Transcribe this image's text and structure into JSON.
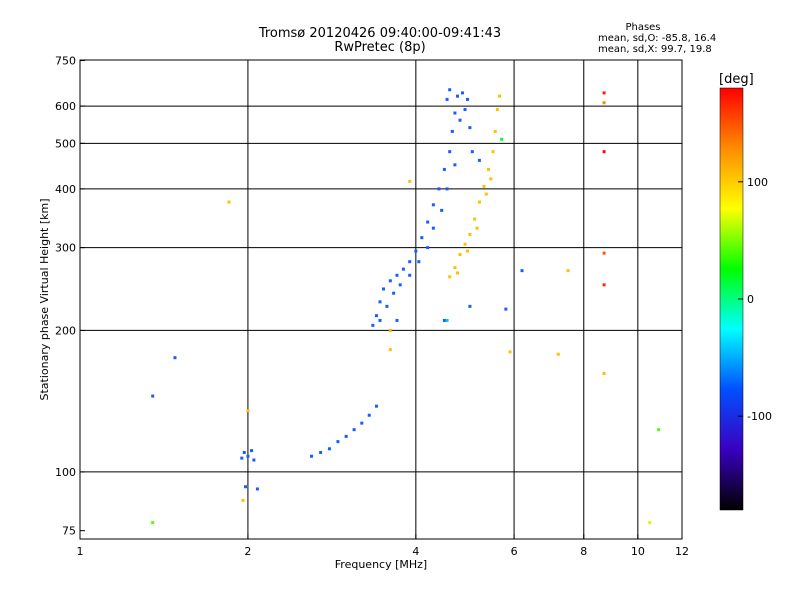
{
  "chart_data": {
    "type": "scatter",
    "title": "Tromsø 20120426 09:40:00-09:41:43",
    "subtitle": "RwPretec (8p)",
    "xlabel": "Frequency [MHz]",
    "ylabel": "Stationary phase Virtual Height [km]",
    "x_scale": "log",
    "y_scale": "log",
    "xlim": [
      1,
      12
    ],
    "ylim": [
      72,
      752
    ],
    "x_ticks": [
      1,
      2,
      4,
      6,
      8,
      10,
      12
    ],
    "y_ticks": [
      75,
      100,
      200,
      300,
      400,
      500,
      600,
      750
    ],
    "x_gridlines": [
      2,
      4,
      6,
      8,
      10
    ],
    "y_gridlines": [
      100,
      200,
      300,
      400,
      500,
      600
    ],
    "grid": true,
    "phase_stats": {
      "header": "Phases",
      "line_o": "mean, sd,O: -85.8, 16.4",
      "line_x": "mean, sd,X:  99.7, 19.8"
    },
    "colorbar": {
      "label": "[deg]",
      "range": [
        -180,
        180
      ],
      "ticks": [
        100,
        0,
        -100
      ],
      "colors": [
        "#ff0000",
        "#ff8c00",
        "#ffff00",
        "#00ff00",
        "#00ffff",
        "#0050ff",
        "#3a00c0",
        "#000000"
      ]
    },
    "o_trace": {
      "phase_deg": -85,
      "color": "#1a5cff",
      "points": [
        [
          1.35,
          145
        ],
        [
          1.48,
          175
        ],
        [
          1.95,
          107
        ],
        [
          1.97,
          110
        ],
        [
          2.0,
          108
        ],
        [
          2.03,
          111
        ],
        [
          2.05,
          106
        ],
        [
          1.98,
          93
        ],
        [
          2.08,
          92
        ],
        [
          2.6,
          108
        ],
        [
          2.7,
          110
        ],
        [
          2.8,
          112
        ],
        [
          2.9,
          116
        ],
        [
          3.0,
          119
        ],
        [
          3.1,
          123
        ],
        [
          3.2,
          127
        ],
        [
          3.3,
          132
        ],
        [
          3.4,
          138
        ],
        [
          3.35,
          205
        ],
        [
          3.4,
          215
        ],
        [
          3.45,
          230
        ],
        [
          3.5,
          245
        ],
        [
          3.6,
          255
        ],
        [
          3.7,
          262
        ],
        [
          3.8,
          270
        ],
        [
          3.9,
          280
        ],
        [
          4.0,
          295
        ],
        [
          4.1,
          315
        ],
        [
          4.2,
          340
        ],
        [
          4.3,
          370
        ],
        [
          4.4,
          400
        ],
        [
          4.5,
          440
        ],
        [
          4.6,
          480
        ],
        [
          4.65,
          530
        ],
        [
          4.7,
          580
        ],
        [
          4.75,
          630
        ],
        [
          4.85,
          640
        ],
        [
          4.9,
          590
        ],
        [
          5.0,
          540
        ],
        [
          5.05,
          480
        ],
        [
          4.8,
          560
        ],
        [
          4.55,
          620
        ],
        [
          4.6,
          650
        ],
        [
          3.45,
          210
        ],
        [
          3.55,
          225
        ],
        [
          3.65,
          240
        ],
        [
          3.75,
          250
        ],
        [
          3.9,
          262
        ],
        [
          4.05,
          280
        ],
        [
          4.2,
          300
        ],
        [
          4.3,
          330
        ],
        [
          4.45,
          360
        ],
        [
          4.55,
          400
        ],
        [
          4.7,
          450
        ],
        [
          4.95,
          620
        ],
        [
          5.2,
          460
        ],
        [
          6.2,
          268
        ],
        [
          5.8,
          222
        ],
        [
          5.0,
          225
        ],
        [
          4.5,
          210
        ],
        [
          3.7,
          210
        ]
      ]
    },
    "x_trace": {
      "phase_deg": 100,
      "color": "#ffc000",
      "points": [
        [
          4.6,
          260
        ],
        [
          4.7,
          272
        ],
        [
          4.8,
          290
        ],
        [
          4.9,
          305
        ],
        [
          5.0,
          320
        ],
        [
          5.1,
          345
        ],
        [
          5.2,
          375
        ],
        [
          5.3,
          405
        ],
        [
          5.4,
          440
        ],
        [
          5.5,
          480
        ],
        [
          5.55,
          530
        ],
        [
          5.6,
          590
        ],
        [
          5.65,
          630
        ],
        [
          4.75,
          265
        ],
        [
          4.95,
          295
        ],
        [
          5.15,
          330
        ],
        [
          5.35,
          390
        ],
        [
          5.45,
          420
        ],
        [
          3.9,
          415
        ],
        [
          3.6,
          182
        ],
        [
          1.85,
          375
        ],
        [
          2.0,
          135
        ],
        [
          1.96,
          87
        ],
        [
          5.9,
          180
        ],
        [
          7.2,
          178
        ],
        [
          7.5,
          268
        ],
        [
          8.7,
          162
        ]
      ]
    },
    "other_points": [
      {
        "x": 8.7,
        "y": 640,
        "phase_deg": 170
      },
      {
        "x": 8.7,
        "y": 610,
        "phase_deg": 130
      },
      {
        "x": 8.7,
        "y": 480,
        "phase_deg": 175
      },
      {
        "x": 8.7,
        "y": 292,
        "phase_deg": 150
      },
      {
        "x": 8.7,
        "y": 250,
        "phase_deg": 165
      },
      {
        "x": 10.9,
        "y": 123,
        "phase_deg": 30
      },
      {
        "x": 10.5,
        "y": 78,
        "phase_deg": 80
      },
      {
        "x": 1.35,
        "y": 78,
        "phase_deg": 30
      },
      {
        "x": 3.6,
        "y": 200,
        "phase_deg": 120
      },
      {
        "x": 5.7,
        "y": 510,
        "phase_deg": -10
      },
      {
        "x": 4.55,
        "y": 210,
        "phase_deg": -60
      }
    ]
  }
}
